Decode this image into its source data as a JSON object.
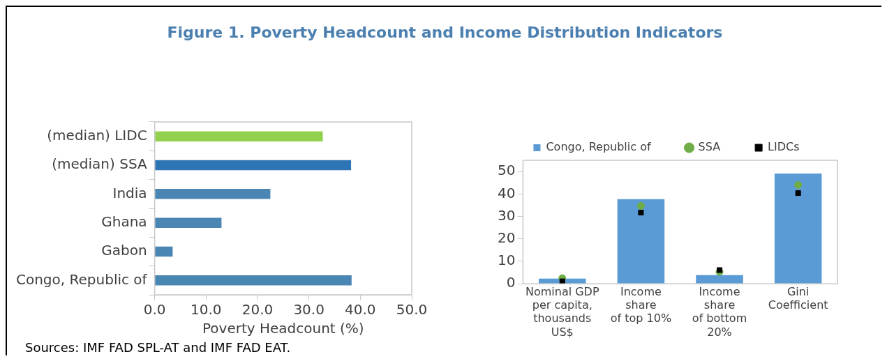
{
  "chart_data": [
    {
      "type": "bar",
      "orientation": "horizontal",
      "title": "Figure 1. Poverty Headcount and Income Distribution Indicators",
      "categories": [
        "(median) LIDC",
        "(median) SSA",
        "India",
        "Ghana",
        "Gabon",
        "Congo, Republic of"
      ],
      "values": [
        32.7,
        38.2,
        22.5,
        13.0,
        3.5,
        38.3
      ],
      "colors": [
        "#92d050",
        "#2e75b6",
        "#4a86b4",
        "#4a86b4",
        "#4a86b4",
        "#4a86b4"
      ],
      "xlim": [
        0,
        50
      ],
      "xticks": [
        {
          "value": 0,
          "label": "0.0"
        },
        {
          "value": 10,
          "label": "10.0"
        },
        {
          "value": 20,
          "label": "20.0"
        },
        {
          "value": 30,
          "label": "30.0"
        },
        {
          "value": 40,
          "label": "40.0"
        },
        {
          "value": 50,
          "label": "50.0"
        }
      ],
      "xlabel": "Poverty Headcount (%)",
      "grid": false,
      "legend": false,
      "annotations": [
        "Sources: IMF FAD SPL-AT and IMF FAD EAT."
      ]
    },
    {
      "type": "bar",
      "categories": [
        "Nominal GDP\nper capita,\nthousands\nUS$",
        "Income\nshare\nof top 10%",
        "Income\nshare\nof bottom\n20%",
        "Gini\nCoefficient"
      ],
      "series": [
        {
          "name": "Congo, Republic of",
          "type": "bar",
          "color": "#5b9bd5",
          "values": [
            2.3,
            37.7,
            3.9,
            49.1
          ]
        },
        {
          "name": "SSA",
          "type": "scatter",
          "marker": "circle",
          "color": "#70ad47",
          "values": [
            2.5,
            34.7,
            5.3,
            44.0
          ]
        },
        {
          "name": "LIDCs",
          "type": "scatter",
          "marker": "square",
          "color": "#000000",
          "values": [
            1.1,
            31.7,
            6.1,
            40.4
          ]
        }
      ],
      "ylim": [
        0,
        55
      ],
      "yticks": [
        0,
        10,
        20,
        30,
        40,
        50
      ],
      "grid": false,
      "legend": "top"
    }
  ]
}
